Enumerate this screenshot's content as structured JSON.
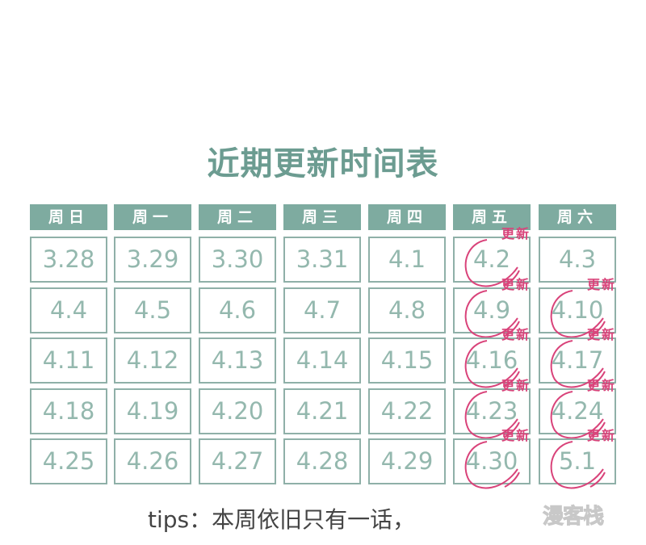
{
  "title": "近期更新时间表",
  "weekdays": [
    "周日",
    "周一",
    "周二",
    "周三",
    "周四",
    "周五",
    "周六"
  ],
  "update_label": "更新",
  "accent_color": "#7eaba0",
  "mark_color": "#d9437a",
  "weeks": [
    [
      {
        "d": "3.28"
      },
      {
        "d": "3.29"
      },
      {
        "d": "3.30"
      },
      {
        "d": "3.31"
      },
      {
        "d": "4.1"
      },
      {
        "d": "4.2",
        "updated": true
      },
      {
        "d": "4.3"
      }
    ],
    [
      {
        "d": "4.4"
      },
      {
        "d": "4.5"
      },
      {
        "d": "4.6"
      },
      {
        "d": "4.7"
      },
      {
        "d": "4.8"
      },
      {
        "d": "4.9",
        "updated": true
      },
      {
        "d": "4.10",
        "updated": true
      }
    ],
    [
      {
        "d": "4.11"
      },
      {
        "d": "4.12"
      },
      {
        "d": "4.13"
      },
      {
        "d": "4.14"
      },
      {
        "d": "4.15"
      },
      {
        "d": "4.16",
        "updated": true
      },
      {
        "d": "4.17",
        "updated": true
      }
    ],
    [
      {
        "d": "4.18"
      },
      {
        "d": "4.19"
      },
      {
        "d": "4.20"
      },
      {
        "d": "4.21"
      },
      {
        "d": "4.22"
      },
      {
        "d": "4.23",
        "updated": true
      },
      {
        "d": "4.24",
        "updated": true
      }
    ],
    [
      {
        "d": "4.25"
      },
      {
        "d": "4.26"
      },
      {
        "d": "4.27"
      },
      {
        "d": "4.28"
      },
      {
        "d": "4.29"
      },
      {
        "d": "4.30",
        "updated": true
      },
      {
        "d": "5.1",
        "updated": true
      }
    ]
  ],
  "tips": "tips：本周依旧只有一话，",
  "watermark": "漫客栈"
}
